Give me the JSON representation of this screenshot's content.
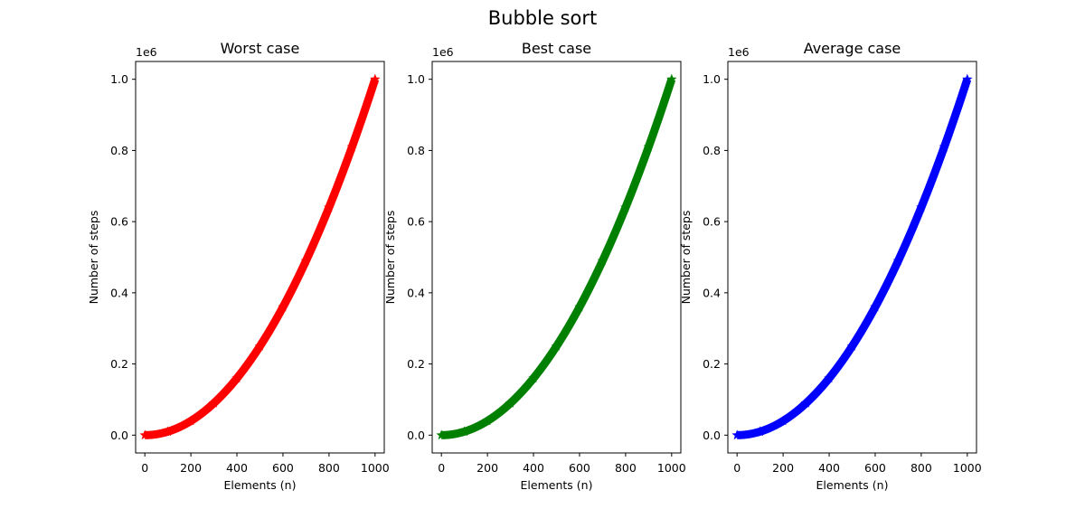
{
  "chart_data": {
    "suptitle": "Bubble sort",
    "panels": [
      {
        "type": "scatter",
        "title": "Worst case",
        "xlabel": "Elements (n)",
        "ylabel": "Number of steps",
        "offset_text": "1e6",
        "color": "#ff0000",
        "marker": "*",
        "x_range": [
          0,
          1000
        ],
        "function": "n^2",
        "xlim": [
          -40,
          1040
        ],
        "ylim": [
          -0.05,
          1.05
        ],
        "xticks": [
          0,
          200,
          400,
          600,
          800,
          1000
        ],
        "yticks": [
          0.0,
          0.2,
          0.4,
          0.6,
          0.8,
          1.0
        ],
        "x": [
          0,
          100,
          200,
          300,
          400,
          500,
          600,
          700,
          800,
          900,
          1000
        ],
        "y": [
          0,
          10000,
          40000,
          90000,
          160000,
          250000,
          360000,
          490000,
          640000,
          810000,
          1000000
        ]
      },
      {
        "type": "scatter",
        "title": "Best case",
        "xlabel": "Elements (n)",
        "ylabel": "Number of steps",
        "offset_text": "1e6",
        "color": "#008000",
        "marker": "*",
        "x_range": [
          0,
          1000
        ],
        "function": "n^2",
        "xlim": [
          -40,
          1040
        ],
        "ylim": [
          -0.05,
          1.05
        ],
        "xticks": [
          0,
          200,
          400,
          600,
          800,
          1000
        ],
        "yticks": [
          0.0,
          0.2,
          0.4,
          0.6,
          0.8,
          1.0
        ],
        "x": [
          0,
          100,
          200,
          300,
          400,
          500,
          600,
          700,
          800,
          900,
          1000
        ],
        "y": [
          0,
          10000,
          40000,
          90000,
          160000,
          250000,
          360000,
          490000,
          640000,
          810000,
          1000000
        ]
      },
      {
        "type": "scatter",
        "title": "Average case",
        "xlabel": "Elements (n)",
        "ylabel": "Number of steps",
        "offset_text": "1e6",
        "color": "#0000ff",
        "marker": "*",
        "x_range": [
          0,
          1000
        ],
        "function": "n^2",
        "xlim": [
          -40,
          1040
        ],
        "ylim": [
          -0.05,
          1.05
        ],
        "xticks": [
          0,
          200,
          400,
          600,
          800,
          1000
        ],
        "yticks": [
          0.0,
          0.2,
          0.4,
          0.6,
          0.8,
          1.0
        ],
        "x": [
          0,
          100,
          200,
          300,
          400,
          500,
          600,
          700,
          800,
          900,
          1000
        ],
        "y": [
          0,
          10000,
          40000,
          90000,
          160000,
          250000,
          360000,
          490000,
          640000,
          810000,
          1000000
        ]
      }
    ]
  }
}
